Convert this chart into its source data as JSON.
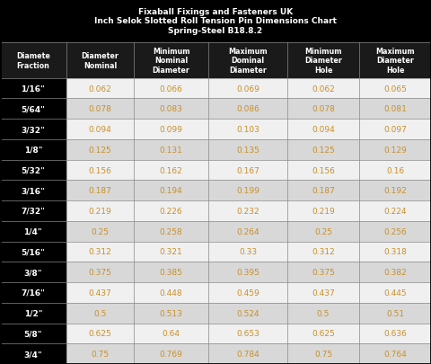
{
  "title_line1": "Fixaball Fixings and Fasteners UK",
  "title_line2": "Inch Selok Slotted Roll Tension Pin Dimensions Chart",
  "title_line3": "Spring-Steel B18.8.2",
  "col_headers": [
    "Diamete\nFraction",
    "Diameter\nNominal",
    "Minimum\nNominal\nDiameter",
    "Maximum\nDominal\nDiameter",
    "Minimum\nDiameter\nHole",
    "Maximum\nDiameter\nHole"
  ],
  "rows": [
    [
      "1/16\"",
      "0.062",
      "0.066",
      "0.069",
      "0.062",
      "0.065"
    ],
    [
      "5/64\"",
      "0.078",
      "0.083",
      "0.086",
      "0.078",
      "0.081"
    ],
    [
      "3/32\"",
      "0.094",
      "0.099",
      "0.103",
      "0.094",
      "0.097"
    ],
    [
      "1/8\"",
      "0.125",
      "0.131",
      "0.135",
      "0.125",
      "0.129"
    ],
    [
      "5/32\"",
      "0.156",
      "0.162",
      "0.167",
      "0.156",
      "0.16"
    ],
    [
      "3/16\"",
      "0.187",
      "0.194",
      "0.199",
      "0.187",
      "0.192"
    ],
    [
      "7/32\"",
      "0.219",
      "0.226",
      "0.232",
      "0.219",
      "0.224"
    ],
    [
      "1/4\"",
      "0.25",
      "0.258",
      "0.264",
      "0.25",
      "0.256"
    ],
    [
      "5/16\"",
      "0.312",
      "0.321",
      "0.33",
      "0.312",
      "0.318"
    ],
    [
      "3/8\"",
      "0.375",
      "0.385",
      "0.395",
      "0.375",
      "0.382"
    ],
    [
      "7/16\"",
      "0.437",
      "0.448",
      "0.459",
      "0.437",
      "0.445"
    ],
    [
      "1/2\"",
      "0.5",
      "0.513",
      "0.524",
      "0.5",
      "0.51"
    ],
    [
      "5/8\"",
      "0.625",
      "0.64",
      "0.653",
      "0.625",
      "0.636"
    ],
    [
      "3/4\"",
      "0.75",
      "0.769",
      "0.784",
      "0.75",
      "0.764"
    ]
  ],
  "title_bg": "#000000",
  "title_fg": "#ffffff",
  "header_bg": "#1a1a1a",
  "header_fg": "#ffffff",
  "col0_bg": "#000000",
  "col0_fg": "#ffffff",
  "row_bg_light": "#f0f0f0",
  "row_bg_dark": "#d8d8d8",
  "row_fg": "#c8902a",
  "grid_color": "#888888",
  "figsize": [
    4.8,
    4.06
  ],
  "dpi": 100
}
